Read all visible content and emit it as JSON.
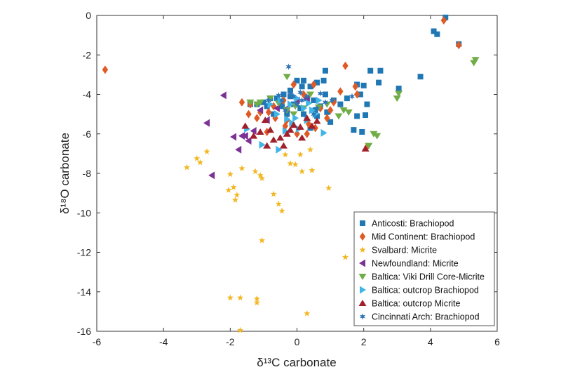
{
  "chart_data": {
    "type": "scatter",
    "xlabel": "δ¹³C carbonate",
    "ylabel": "δ¹⁸O carbonate",
    "xlim": [
      -6,
      6
    ],
    "ylim": [
      -16,
      0
    ],
    "xticks": [
      -6,
      -4,
      -2,
      0,
      2,
      4,
      6
    ],
    "yticks": [
      0,
      -2,
      -4,
      -6,
      -8,
      -10,
      -12,
      -14,
      -16
    ],
    "grid": false,
    "legend_position": "bottom-right",
    "series": [
      {
        "name": "Anticosti: Brachiopod",
        "marker": "square",
        "color": "#1f77b4",
        "points": [
          [
            4.45,
            -0.1
          ],
          [
            4.1,
            -0.8
          ],
          [
            4.2,
            -0.95
          ],
          [
            4.85,
            -1.45
          ],
          [
            3.7,
            -3.1
          ],
          [
            3.05,
            -3.7
          ],
          [
            2.5,
            -2.8
          ],
          [
            2.2,
            -2.8
          ],
          [
            2.45,
            -3.4
          ],
          [
            2.0,
            -3.55
          ],
          [
            1.8,
            -3.5
          ],
          [
            1.9,
            -4.0
          ],
          [
            2.1,
            -4.5
          ],
          [
            2.05,
            -5.05
          ],
          [
            1.8,
            -5.1
          ],
          [
            1.7,
            -5.8
          ],
          [
            1.95,
            -5.9
          ],
          [
            1.5,
            -4.2
          ],
          [
            1.3,
            -4.5
          ],
          [
            1.1,
            -4.3
          ],
          [
            0.85,
            -2.8
          ],
          [
            0.8,
            -3.3
          ],
          [
            0.6,
            -3.4
          ],
          [
            0.4,
            -3.6
          ],
          [
            0.2,
            -3.3
          ],
          [
            0.0,
            -3.3
          ],
          [
            -0.2,
            -3.8
          ],
          [
            -0.4,
            -4.0
          ],
          [
            -0.6,
            -4.2
          ],
          [
            -0.8,
            -4.2
          ],
          [
            -1.0,
            -4.4
          ],
          [
            -1.2,
            -4.5
          ],
          [
            -1.4,
            -4.5
          ],
          [
            -0.9,
            -4.6
          ],
          [
            -0.5,
            -4.4
          ],
          [
            -0.1,
            -4.5
          ],
          [
            0.3,
            -4.2
          ],
          [
            0.5,
            -4.3
          ],
          [
            0.7,
            -4.6
          ],
          [
            0.9,
            -4.9
          ],
          [
            1.0,
            -5.4
          ],
          [
            0.6,
            -5.1
          ],
          [
            0.2,
            -5.0
          ],
          [
            -0.3,
            -5.0
          ],
          [
            -0.7,
            -5.0
          ],
          [
            0.4,
            -5.7
          ],
          [
            0.1,
            -4.7
          ],
          [
            -0.2,
            -4.1
          ],
          [
            0.55,
            -4.8
          ],
          [
            0.85,
            -4.0
          ],
          [
            0.15,
            -3.6
          ],
          [
            -0.45,
            -4.6
          ]
        ]
      },
      {
        "name": "Mid Continent: Brachiopod",
        "marker": "diamond",
        "color": "#e05a25",
        "points": [
          [
            -5.75,
            -2.75
          ],
          [
            4.4,
            -0.25
          ],
          [
            4.85,
            -1.5
          ],
          [
            1.45,
            -2.55
          ],
          [
            2.1,
            -6.65
          ],
          [
            1.8,
            -4.0
          ],
          [
            1.75,
            -3.6
          ],
          [
            1.3,
            -3.85
          ],
          [
            1.1,
            -4.4
          ],
          [
            0.9,
            -5.2
          ],
          [
            0.55,
            -5.7
          ],
          [
            0.3,
            -6.0
          ],
          [
            0.0,
            -6.0
          ],
          [
            -0.35,
            -5.6
          ],
          [
            -0.65,
            -5.2
          ],
          [
            -0.85,
            -4.9
          ],
          [
            -1.1,
            -4.9
          ],
          [
            -1.4,
            -4.5
          ],
          [
            -1.65,
            -4.4
          ],
          [
            -1.2,
            -5.2
          ],
          [
            -0.7,
            -4.6
          ],
          [
            -0.4,
            -4.3
          ],
          [
            -0.1,
            -3.5
          ],
          [
            0.2,
            -4.0
          ],
          [
            0.5,
            -3.5
          ],
          [
            0.7,
            -4.7
          ],
          [
            -0.9,
            -5.9
          ],
          [
            -0.3,
            -5.3
          ],
          [
            0.35,
            -5.5
          ],
          [
            1.0,
            -4.8
          ],
          [
            -1.45,
            -5.0
          ]
        ]
      },
      {
        "name": "Svalbard: Micrite",
        "marker": "star",
        "color": "#f2b722",
        "points": [
          [
            -3.3,
            -7.7
          ],
          [
            -3.0,
            -7.25
          ],
          [
            -2.9,
            -7.45
          ],
          [
            -2.7,
            -6.9
          ],
          [
            -2.05,
            -8.85
          ],
          [
            -2.0,
            -8.05
          ],
          [
            -1.9,
            -8.7
          ],
          [
            -1.85,
            -9.35
          ],
          [
            -1.8,
            -9.1
          ],
          [
            -1.65,
            -7.75
          ],
          [
            -1.25,
            -7.9
          ],
          [
            -1.1,
            -8.1
          ],
          [
            -1.05,
            -8.25
          ],
          [
            -0.7,
            -9.05
          ],
          [
            -0.55,
            -9.55
          ],
          [
            -0.45,
            -9.9
          ],
          [
            -0.35,
            -7.05
          ],
          [
            -0.2,
            -7.5
          ],
          [
            -0.05,
            -7.55
          ],
          [
            0.1,
            -7.05
          ],
          [
            0.15,
            -7.9
          ],
          [
            0.4,
            -6.8
          ],
          [
            0.45,
            -7.85
          ],
          [
            0.95,
            -8.75
          ],
          [
            -1.05,
            -11.4
          ],
          [
            1.45,
            -12.25
          ],
          [
            -2.0,
            -14.3
          ],
          [
            -1.7,
            -14.3
          ],
          [
            -1.2,
            -14.35
          ],
          [
            -1.2,
            -14.55
          ],
          [
            0.3,
            -15.1
          ],
          [
            -1.7,
            -15.95
          ]
        ]
      },
      {
        "name": "Newfoundland: Micrite",
        "marker": "triangle-left",
        "color": "#7b3294",
        "points": [
          [
            -2.2,
            -4.05
          ],
          [
            -2.7,
            -5.45
          ],
          [
            -2.55,
            -8.1
          ],
          [
            -1.9,
            -6.15
          ],
          [
            -1.75,
            -6.8
          ],
          [
            -1.65,
            -6.1
          ],
          [
            -1.55,
            -6.1
          ],
          [
            -1.45,
            -6.35
          ],
          [
            -1.3,
            -5.85
          ],
          [
            -1.1,
            -4.8
          ],
          [
            -0.9,
            -5.3
          ],
          [
            -0.6,
            -4.7
          ],
          [
            -0.3,
            -4.7
          ],
          [
            0.0,
            -4.3
          ],
          [
            0.3,
            -4.2
          ]
        ]
      },
      {
        "name": "Baltica: Viki Drill Core-Micrite",
        "marker": "triangle-down",
        "color": "#70ad47",
        "points": [
          [
            5.35,
            -2.25
          ],
          [
            5.3,
            -2.4
          ],
          [
            3.05,
            -3.95
          ],
          [
            3.0,
            -4.2
          ],
          [
            2.3,
            -6.0
          ],
          [
            2.4,
            -6.1
          ],
          [
            2.15,
            -6.6
          ],
          [
            1.55,
            -4.9
          ],
          [
            1.4,
            -4.8
          ],
          [
            1.25,
            -5.1
          ],
          [
            0.9,
            -4.5
          ],
          [
            0.65,
            -4.65
          ],
          [
            0.4,
            -4.0
          ],
          [
            0.2,
            -4.7
          ],
          [
            -0.05,
            -4.6
          ],
          [
            -0.3,
            -4.8
          ],
          [
            -0.55,
            -4.45
          ],
          [
            -0.8,
            -4.2
          ],
          [
            -1.1,
            -4.4
          ],
          [
            -1.4,
            -4.4
          ],
          [
            -1.2,
            -4.5
          ],
          [
            -0.3,
            -3.1
          ],
          [
            -0.1,
            -5.0
          ]
        ]
      },
      {
        "name": "Baltica: outcrop Brachiopod",
        "marker": "triangle-right",
        "color": "#41b6e6",
        "points": [
          [
            -1.5,
            -5.75
          ],
          [
            -1.05,
            -6.55
          ],
          [
            -0.55,
            -6.8
          ],
          [
            -0.35,
            -5.85
          ],
          [
            -0.15,
            -5.45
          ],
          [
            0.05,
            -5.75
          ],
          [
            0.3,
            -5.3
          ],
          [
            0.55,
            -5.0
          ],
          [
            0.8,
            -5.95
          ],
          [
            0.45,
            -4.8
          ],
          [
            0.2,
            -4.7
          ],
          [
            -0.05,
            -5.2
          ],
          [
            -0.3,
            -5.25
          ],
          [
            -0.6,
            -5.0
          ],
          [
            -0.8,
            -4.5
          ],
          [
            -0.5,
            -4.3
          ],
          [
            -0.2,
            -4.5
          ],
          [
            0.0,
            -4.2
          ],
          [
            0.35,
            -4.45
          ],
          [
            0.65,
            -4.3
          ]
        ]
      },
      {
        "name": "Baltica: outcrop Micrite",
        "marker": "triangle-up",
        "color": "#a0212d",
        "points": [
          [
            2.05,
            -6.75
          ],
          [
            -0.9,
            -6.6
          ],
          [
            -0.4,
            -6.6
          ],
          [
            -0.7,
            -6.3
          ],
          [
            -0.5,
            -6.2
          ],
          [
            -0.3,
            -6.0
          ],
          [
            -1.3,
            -6.1
          ],
          [
            -1.1,
            -5.9
          ],
          [
            -0.8,
            -5.8
          ],
          [
            -1.55,
            -5.6
          ],
          [
            0.15,
            -6.2
          ],
          [
            0.45,
            -5.6
          ],
          [
            -0.1,
            -5.55
          ],
          [
            0.3,
            -5.2
          ],
          [
            0.6,
            -5.35
          ],
          [
            -0.2,
            -5.8
          ],
          [
            0.1,
            -5.65
          ],
          [
            -0.95,
            -5.3
          ]
        ]
      },
      {
        "name": "Cincinnati Arch: Brachiopod",
        "marker": "hexstar",
        "color": "#2e75b6",
        "points": [
          [
            -0.25,
            -2.6
          ],
          [
            -0.2,
            -3.95
          ],
          [
            -0.1,
            -4.1
          ],
          [
            -0.45,
            -4.3
          ],
          [
            -0.55,
            -4.05
          ],
          [
            0.0,
            -4.5
          ],
          [
            0.15,
            -4.3
          ],
          [
            0.3,
            -4.1
          ],
          [
            0.7,
            -3.95
          ],
          [
            0.6,
            -4.7
          ],
          [
            1.05,
            -4.3
          ],
          [
            1.65,
            -4.1
          ],
          [
            -0.85,
            -4.3
          ],
          [
            0.5,
            -5.0
          ],
          [
            0.85,
            -4.4
          ],
          [
            -0.35,
            -4.8
          ],
          [
            0.1,
            -3.9
          ]
        ]
      }
    ]
  }
}
